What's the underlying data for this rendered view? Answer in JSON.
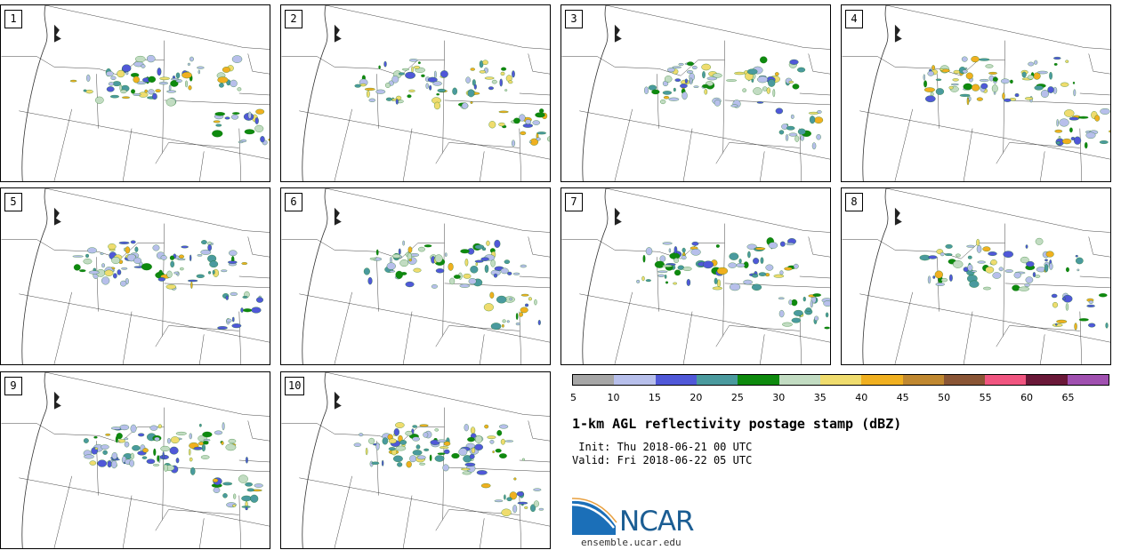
{
  "panels": [
    {
      "label": "1"
    },
    {
      "label": "2"
    },
    {
      "label": "3"
    },
    {
      "label": "4"
    },
    {
      "label": "5"
    },
    {
      "label": "6"
    },
    {
      "label": "7"
    },
    {
      "label": "8"
    },
    {
      "label": "9"
    },
    {
      "label": "10"
    }
  ],
  "colorbar": {
    "colors": [
      "#a6a6a6",
      "#b7bfeb",
      "#5058d8",
      "#4a9a9e",
      "#0e8a0e",
      "#c2dcc2",
      "#efdc6e",
      "#f0b020",
      "#c08830",
      "#8a5535",
      "#f05580",
      "#6a1838",
      "#a050b0"
    ],
    "ticks": [
      "5",
      "10",
      "15",
      "20",
      "25",
      "30",
      "35",
      "40",
      "45",
      "50",
      "55",
      "60",
      "65"
    ]
  },
  "title": "1-km AGL reflectivity postage stamp (dBZ)",
  "init": " Init: Thu 2018-06-21 00 UTC",
  "valid": "Valid: Fri 2018-06-22 05 UTC",
  "logo": {
    "text": "NCAR",
    "site": "ensemble.ucar.edu"
  }
}
